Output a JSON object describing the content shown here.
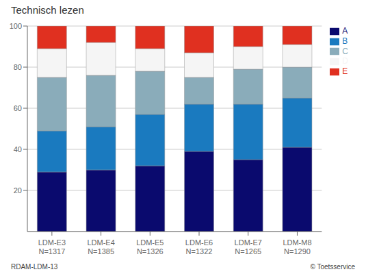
{
  "chart_data": {
    "type": "bar",
    "title": "Technisch lezen",
    "categories": [
      "LDM-E3\nN=1317",
      "LDM-E4\nN=1385",
      "LDM-E5\nN=1326",
      "LDM-E6\nN=1322",
      "LDM-E7\nN=1265",
      "LDM-M8\nN=1290"
    ],
    "series": [
      {
        "name": "A",
        "color": "#0a0a6e",
        "values": [
          29,
          30,
          32,
          39,
          35,
          41
        ]
      },
      {
        "name": "B",
        "color": "#1a7abf",
        "values": [
          20,
          21,
          25,
          23,
          27,
          24
        ]
      },
      {
        "name": "C",
        "color": "#8aacba",
        "values": [
          26,
          25,
          21,
          13,
          17,
          15
        ]
      },
      {
        "name": "D",
        "color": "#f5f5f5",
        "values": [
          14,
          16,
          11,
          12,
          11,
          11
        ]
      },
      {
        "name": "E",
        "color": "#e03020",
        "values": [
          11,
          8,
          11,
          13,
          10,
          9
        ]
      }
    ],
    "ylim": [
      0,
      100
    ],
    "yticks": [
      20,
      40,
      60,
      80,
      100
    ],
    "stacked": true,
    "grid": true,
    "legend": "right",
    "annotations": [
      "RDAM-LDM-13",
      "© Toetsservice"
    ]
  }
}
